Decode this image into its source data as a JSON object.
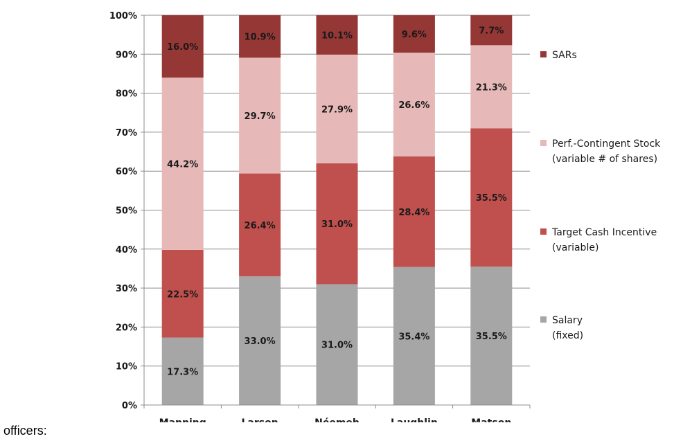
{
  "caption": "officers:",
  "chart_data": {
    "type": "bar",
    "stacked": true,
    "categories": [
      "Manning",
      "Larson",
      "Néemeh",
      "Laughlin",
      "Matson"
    ],
    "series": [
      {
        "name": "Salary\n(fixed)",
        "color": "#a6a6a6",
        "values": [
          17.3,
          33.0,
          31.0,
          35.4,
          35.5
        ],
        "labels": [
          "17.3%",
          "33.0%",
          "31.0%",
          "35.4%",
          "35.5%"
        ]
      },
      {
        "name": "Target Cash Incentive\n(variable)",
        "color": "#c0504d",
        "values": [
          22.5,
          26.4,
          31.0,
          28.4,
          35.5
        ],
        "labels": [
          "22.5%",
          "26.4%",
          "31.0%",
          "28.4%",
          "35.5%"
        ]
      },
      {
        "name": "Perf.-Contingent Stock\n(variable # of shares)",
        "color": "#e6b9b8",
        "values": [
          44.2,
          29.7,
          27.9,
          26.6,
          21.3
        ],
        "labels": [
          "44.2%",
          "29.7%",
          "27.9%",
          "26.6%",
          "21.3%"
        ]
      },
      {
        "name": "SARs",
        "color": "#953735",
        "values": [
          16.0,
          10.9,
          10.1,
          9.6,
          7.7
        ],
        "labels": [
          "16.0%",
          "10.9%",
          "10.1%",
          "9.6%",
          "7.7%"
        ]
      }
    ],
    "yticks": [
      "0%",
      "10%",
      "20%",
      "30%",
      "40%",
      "50%",
      "60%",
      "70%",
      "80%",
      "90%",
      "100%"
    ],
    "ylim": [
      0,
      100
    ],
    "grid": true,
    "legend_position": "right",
    "legend_order": [
      "SARs",
      "Perf.-Contingent Stock\n(variable # of shares)",
      "Target Cash Incentive\n(variable)",
      "Salary\n(fixed)"
    ],
    "title": "",
    "xlabel": "",
    "ylabel": ""
  }
}
